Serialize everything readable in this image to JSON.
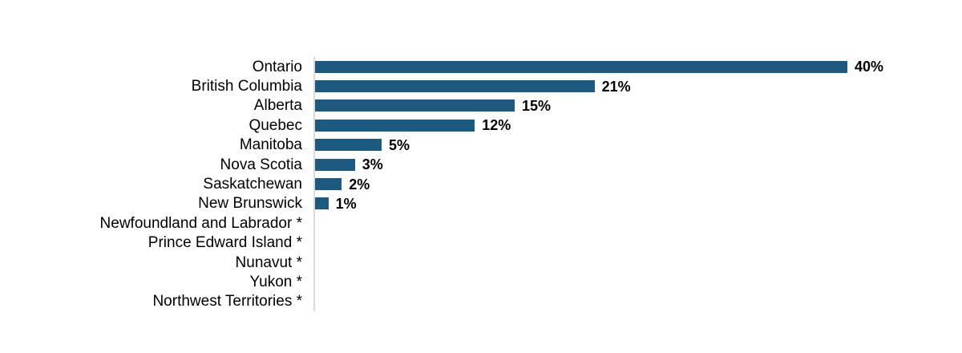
{
  "chart_data": {
    "type": "bar",
    "orientation": "horizontal",
    "title": "",
    "xlabel": "",
    "ylabel": "",
    "grid": false,
    "legend": false,
    "xlim": [
      0,
      40
    ],
    "footnote_marker": "*",
    "categories": [
      "Ontario",
      "British Columbia",
      "Alberta",
      "Quebec",
      "Manitoba",
      "Nova Scotia",
      "Saskatchewan",
      "New Brunswick",
      "Newfoundland and Labrador *",
      "Prince Edward Island *",
      "Nunavut *",
      "Yukon *",
      "Northwest Territories *"
    ],
    "values": [
      40,
      21,
      15,
      12,
      5,
      3,
      2,
      1,
      null,
      null,
      null,
      null,
      null
    ],
    "value_labels": [
      "40%",
      "21%",
      "15%",
      "12%",
      "5%",
      "3%",
      "2%",
      "1%",
      "",
      "",
      "",
      "",
      ""
    ],
    "colors": {
      "bar": "#1E5A80",
      "axis_line": "#D9D9D9",
      "text": "#000000"
    }
  }
}
